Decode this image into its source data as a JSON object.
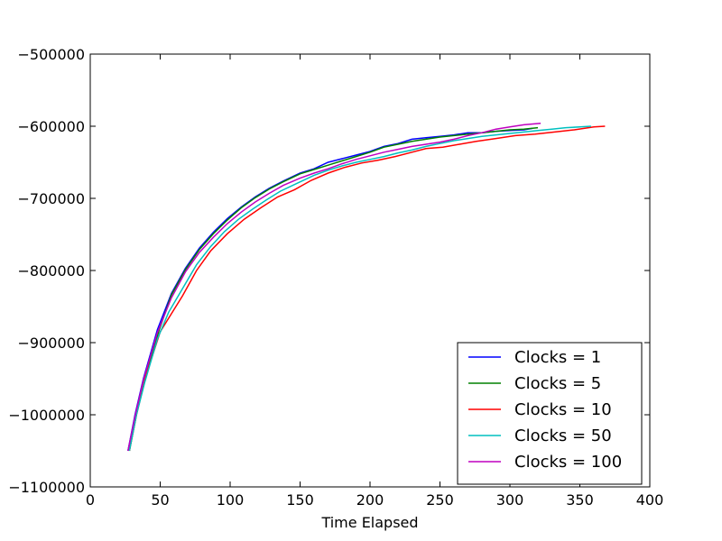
{
  "chart_data": {
    "type": "line",
    "title": "",
    "xlabel": "Time Elapsed",
    "ylabel": "",
    "xlim": [
      0,
      400
    ],
    "ylim": [
      -1100000,
      -500000
    ],
    "xticks": [
      0,
      50,
      100,
      150,
      200,
      250,
      300,
      350,
      400
    ],
    "yticks": [
      -1100000,
      -1000000,
      -900000,
      -800000,
      -700000,
      -600000,
      -500000
    ],
    "xtick_labels": [
      "0",
      "50",
      "100",
      "150",
      "200",
      "250",
      "300",
      "350",
      "400"
    ],
    "ytick_labels": [
      "−1100000",
      "−1000000",
      "−900000",
      "−800000",
      "−700000",
      "−600000",
      "−500000"
    ],
    "grid": false,
    "legend_position": "lower-right",
    "series": [
      {
        "name": "Clocks = 1",
        "color": "#0000ff",
        "x": [
          27,
          32,
          38,
          48,
          58,
          68,
          78,
          88,
          98,
          108,
          118,
          128,
          138,
          150,
          160,
          170,
          180,
          190,
          200,
          210,
          220,
          230,
          240,
          250,
          260,
          270,
          280,
          290,
          300,
          310,
          316
        ],
        "y": [
          -1050000,
          -1000000,
          -950000,
          -882000,
          -832000,
          -797000,
          -769000,
          -747000,
          -728000,
          -712000,
          -698000,
          -686000,
          -676000,
          -665000,
          -659000,
          -650000,
          -645000,
          -640000,
          -635000,
          -628000,
          -624000,
          -618000,
          -616000,
          -614000,
          -612000,
          -609000,
          -609000,
          -607000,
          -606000,
          -605000,
          -603000
        ]
      },
      {
        "name": "Clocks = 5",
        "color": "#008000",
        "x": [
          28,
          33,
          39,
          49,
          58,
          68,
          78,
          88,
          98,
          108,
          118,
          128,
          138,
          150,
          160,
          170,
          180,
          190,
          200,
          210,
          220,
          230,
          240,
          250,
          260,
          270,
          280,
          290,
          300,
          310,
          320
        ],
        "y": [
          -1050000,
          -1000000,
          -952000,
          -884000,
          -834000,
          -799000,
          -771000,
          -749000,
          -730000,
          -713000,
          -699000,
          -687000,
          -677000,
          -666000,
          -660000,
          -654000,
          -648000,
          -642000,
          -636000,
          -629000,
          -625000,
          -621000,
          -618000,
          -615000,
          -613000,
          -611000,
          -609000,
          -607000,
          -605000,
          -604000,
          -602000
        ]
      },
      {
        "name": "Clocks = 10",
        "color": "#ff0000",
        "x": [
          28,
          33,
          40,
          50,
          58,
          66,
          76,
          86,
          98,
          110,
          122,
          134,
          146,
          158,
          170,
          182,
          194,
          206,
          218,
          230,
          240,
          252,
          264,
          276,
          290,
          304,
          318,
          332,
          346,
          360,
          368
        ],
        "y": [
          -1050000,
          -1000000,
          -945000,
          -885000,
          -860000,
          -835000,
          -800000,
          -773000,
          -749000,
          -729000,
          -713000,
          -698000,
          -688000,
          -675000,
          -665000,
          -657000,
          -651000,
          -647000,
          -642000,
          -636000,
          -631000,
          -629000,
          -625000,
          -621000,
          -617000,
          -613000,
          -611000,
          -608000,
          -605000,
          -601000,
          -600000
        ]
      },
      {
        "name": "Clocks = 50",
        "color": "#00bfbf",
        "x": [
          28,
          33,
          39,
          48,
          56,
          66,
          76,
          86,
          96,
          106,
          116,
          126,
          136,
          148,
          160,
          170,
          180,
          190,
          200,
          210,
          220,
          230,
          240,
          250,
          260,
          270,
          280,
          290,
          300,
          310,
          320,
          330,
          340,
          350,
          358
        ],
        "y": [
          -1050000,
          -1000000,
          -955000,
          -895000,
          -858000,
          -825000,
          -792000,
          -767000,
          -746000,
          -729000,
          -715000,
          -702000,
          -690000,
          -679000,
          -668000,
          -661000,
          -655000,
          -650000,
          -646000,
          -642000,
          -637000,
          -633000,
          -628000,
          -624000,
          -620000,
          -617000,
          -614000,
          -612000,
          -610000,
          -608000,
          -606000,
          -604000,
          -602000,
          -601000,
          -600000
        ]
      },
      {
        "name": "Clocks = 100",
        "color": "#bf00bf",
        "x": [
          27,
          32,
          38,
          48,
          58,
          68,
          78,
          88,
          98,
          108,
          118,
          128,
          138,
          150,
          160,
          170,
          180,
          190,
          200,
          210,
          220,
          230,
          240,
          250,
          260,
          270,
          280,
          290,
          300,
          310,
          322
        ],
        "y": [
          -1050000,
          -1002000,
          -952000,
          -886000,
          -838000,
          -802000,
          -775000,
          -754000,
          -735000,
          -719000,
          -705000,
          -693000,
          -682000,
          -672000,
          -665000,
          -659000,
          -652000,
          -646000,
          -641000,
          -636000,
          -632000,
          -628000,
          -625000,
          -622000,
          -618000,
          -613000,
          -609000,
          -604000,
          -601000,
          -598000,
          -596000
        ]
      }
    ]
  }
}
